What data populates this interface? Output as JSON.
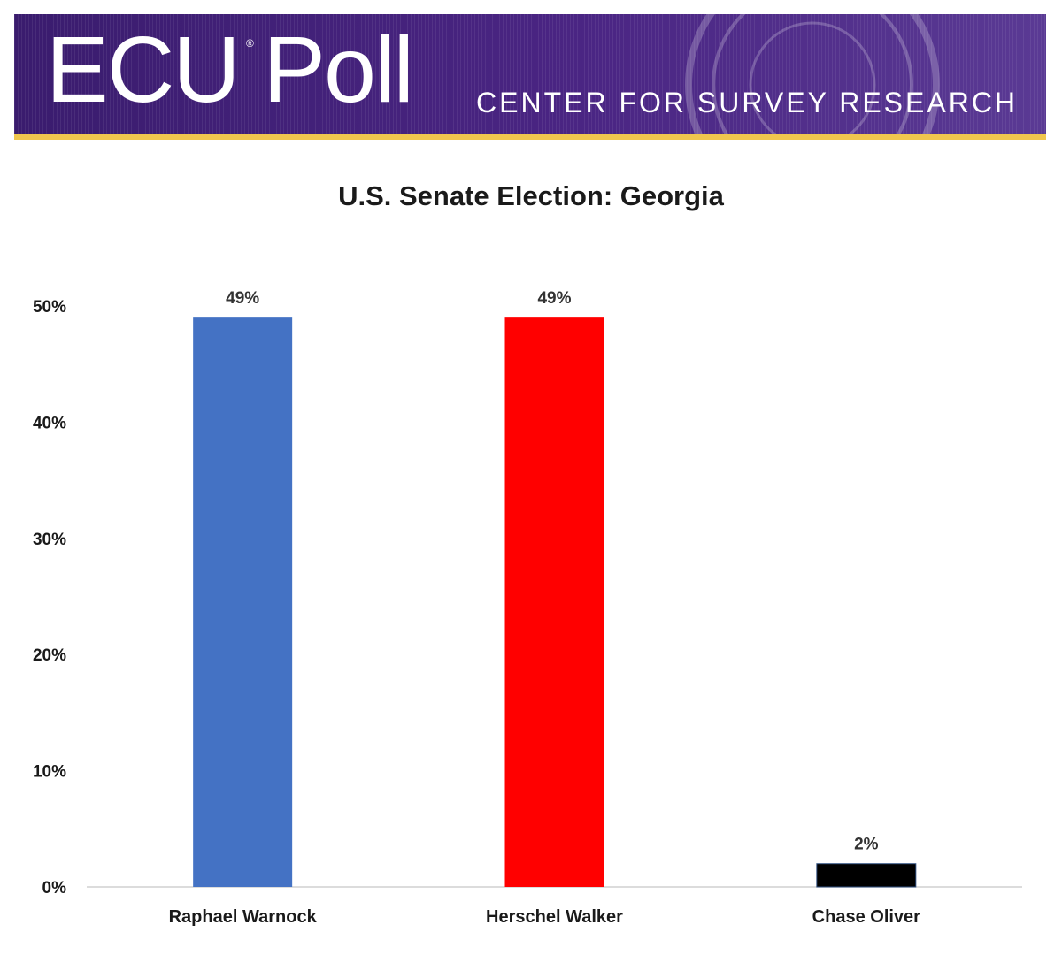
{
  "banner": {
    "brand": "ECU Poll",
    "registered_mark": "®",
    "subtitle": "CENTER FOR SURVEY RESEARCH",
    "primary_color": "#4a2583",
    "accent_color": "#f0c64e"
  },
  "chart_data": {
    "type": "bar",
    "title": "U.S. Senate Election: Georgia",
    "xlabel": "",
    "ylabel": "",
    "categories": [
      "Raphael Warnock",
      "Herschel Walker",
      "Chase Oliver"
    ],
    "values": [
      49,
      49,
      2
    ],
    "data_labels": [
      "49%",
      "49%",
      "2%"
    ],
    "colors": [
      "#4472c4",
      "#ff0000",
      "#000000"
    ],
    "ylim": [
      0,
      50
    ],
    "yticks": [
      0,
      10,
      20,
      30,
      40,
      50
    ],
    "ytick_labels": [
      "0%",
      "10%",
      "20%",
      "30%",
      "40%",
      "50%"
    ],
    "grid": false,
    "legend": "none"
  }
}
